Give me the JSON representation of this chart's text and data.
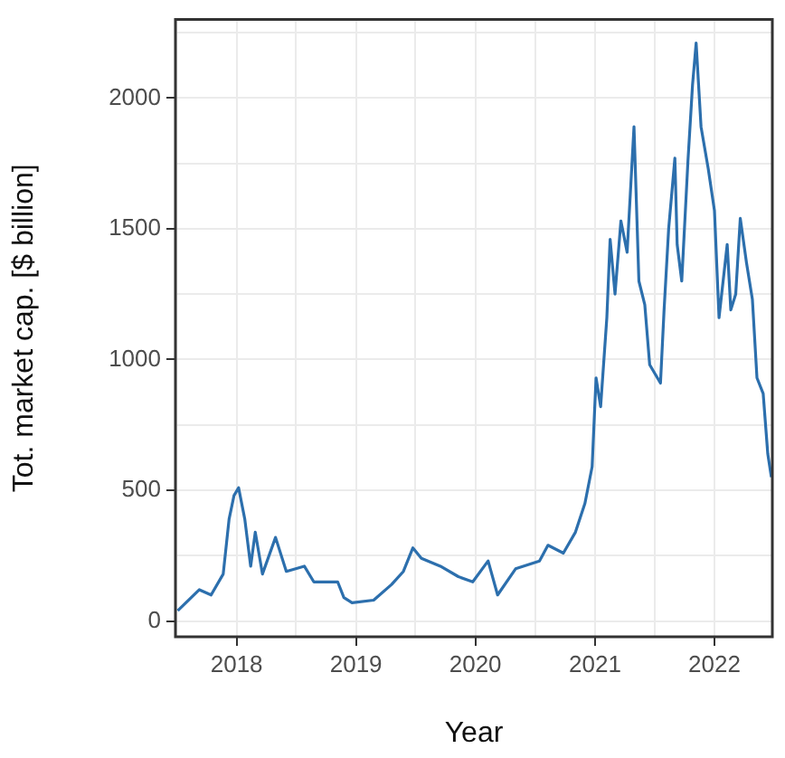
{
  "chart_data": {
    "type": "line",
    "xlabel": "Year",
    "ylabel": "Tot. market cap. [$ billion]",
    "color": "#2c6fad",
    "marker": "none",
    "grid": true,
    "x": [
      "2017-07-05",
      "2017-09-09",
      "2017-10-15",
      "2017-11-21",
      "2017-12-09",
      "2017-12-24",
      "2018-01-07",
      "2018-01-26",
      "2018-02-13",
      "2018-02-27",
      "2018-03-21",
      "2018-04-30",
      "2018-06-02",
      "2018-07-27",
      "2018-08-25",
      "2018-11-06",
      "2018-11-25",
      "2018-12-20",
      "2019-02-24",
      "2019-04-20",
      "2019-05-26",
      "2019-06-24",
      "2019-07-20",
      "2019-09-16",
      "2019-11-10",
      "2019-12-24",
      "2020-02-09",
      "2020-03-09",
      "2020-05-03",
      "2020-07-15",
      "2020-08-10",
      "2020-09-26",
      "2020-11-02",
      "2020-12-01",
      "2020-12-23",
      "2021-01-04",
      "2021-01-18",
      "2021-02-06",
      "2021-02-16",
      "2021-03-03",
      "2021-03-21",
      "2021-04-09",
      "2021-04-30",
      "2021-05-15",
      "2021-06-02",
      "2021-06-17",
      "2021-07-20",
      "2021-07-31",
      "2021-08-14",
      "2021-09-02",
      "2021-09-09",
      "2021-09-23",
      "2021-10-12",
      "2021-10-26",
      "2021-11-06",
      "2021-11-21",
      "2021-12-13",
      "2022-01-01",
      "2022-01-15",
      "2022-02-09",
      "2022-02-20",
      "2022-03-07",
      "2022-03-21",
      "2022-04-09",
      "2022-04-27",
      "2022-05-11",
      "2022-05-30",
      "2022-06-13",
      "2022-06-24"
    ],
    "values": [
      40,
      120,
      100,
      180,
      390,
      480,
      510,
      390,
      210,
      340,
      180,
      320,
      190,
      210,
      150,
      150,
      90,
      70,
      80,
      140,
      190,
      280,
      240,
      210,
      170,
      150,
      230,
      100,
      200,
      230,
      290,
      260,
      340,
      450,
      590,
      930,
      820,
      1160,
      1460,
      1250,
      1530,
      1410,
      1890,
      1300,
      1210,
      980,
      910,
      1190,
      1500,
      1770,
      1440,
      1300,
      1760,
      2050,
      2210,
      1890,
      1730,
      1570,
      1160,
      1440,
      1190,
      1250,
      1540,
      1370,
      1230,
      930,
      870,
      640,
      550
    ],
    "xlim": [
      "2017-06-28",
      "2022-06-27"
    ],
    "xticks": [
      "2018",
      "2019",
      "2020",
      "2021",
      "2022",
      {
        "value": "2017-07-02",
        "label": null
      },
      {
        "value": "2018-07-02",
        "label": null
      },
      {
        "value": "2019-07-02",
        "label": null
      },
      {
        "value": "2020-07-02",
        "label": null
      },
      {
        "value": "2021-07-02",
        "label": null
      }
    ],
    "ylim": [
      -60,
      2300
    ],
    "yticks": [
      0,
      500,
      1000,
      1500,
      2000,
      {
        "value": 250,
        "label": null
      },
      {
        "value": 750,
        "label": null
      },
      {
        "value": 1250,
        "label": null
      },
      {
        "value": 1750,
        "label": null
      },
      {
        "value": 2250,
        "label": null
      }
    ]
  }
}
